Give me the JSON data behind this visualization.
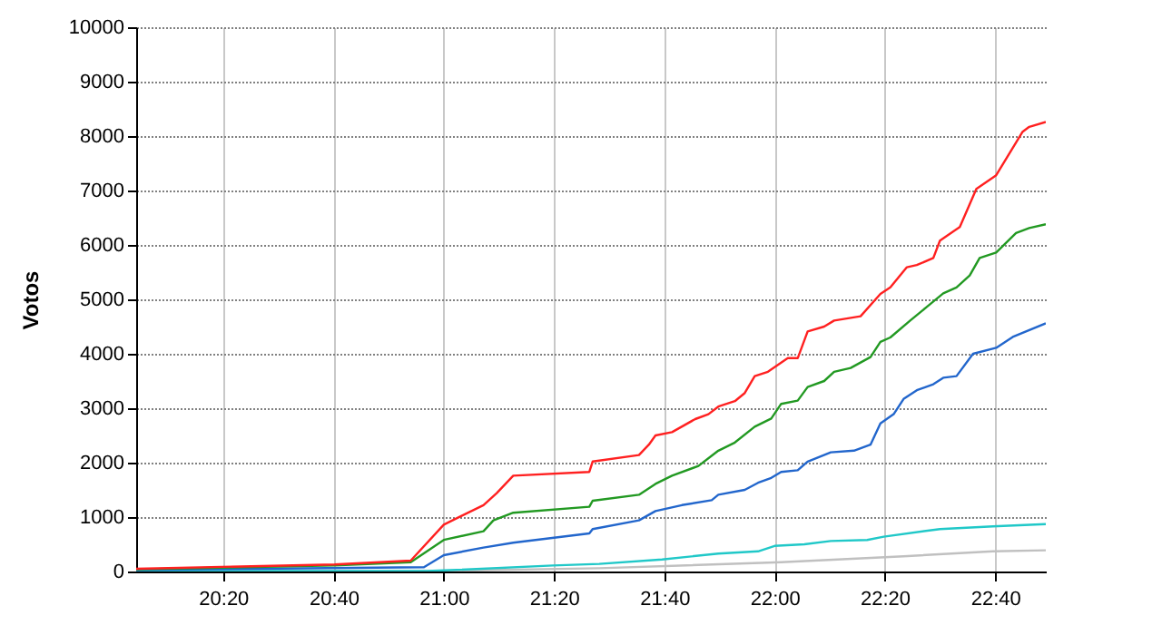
{
  "chart_data": {
    "type": "line",
    "ylabel": "Votos",
    "xlim": [
      20.07,
      22.82
    ],
    "ylim": [
      0,
      10000
    ],
    "xticks": [
      {
        "value": 20.333,
        "label": "20:20"
      },
      {
        "value": 20.667,
        "label": "20:40"
      },
      {
        "value": 21,
        "label": "21:00"
      },
      {
        "value": 21.333,
        "label": "21:20"
      },
      {
        "value": 21.667,
        "label": "21:40"
      },
      {
        "value": 22,
        "label": "22:00"
      },
      {
        "value": 22.333,
        "label": "22:20"
      },
      {
        "value": 22.667,
        "label": "22:40"
      }
    ],
    "yticks": [
      0,
      1000,
      2000,
      3000,
      4000,
      5000,
      6000,
      7000,
      8000,
      9000,
      10000
    ],
    "grid": true,
    "marker": "none",
    "line_style": "solid",
    "series": [
      {
        "color": "#c0c0c0",
        "x": [
          20.07,
          21.0,
          21.47,
          22.02,
          22.39,
          22.66,
          22.82
        ],
        "values": [
          0,
          10,
          60,
          170,
          280,
          370,
          390
        ]
      },
      {
        "color": "#20c8c8",
        "x": [
          20.07,
          20.95,
          21.0,
          21.33,
          21.47,
          21.66,
          21.83,
          21.95,
          22.0,
          22.09,
          22.17,
          22.28,
          22.33,
          22.5,
          22.66,
          22.82
        ],
        "values": [
          10,
          10,
          20,
          110,
          140,
          220,
          330,
          370,
          470,
          500,
          560,
          580,
          640,
          780,
          830,
          870
        ]
      },
      {
        "color": "#2266cc",
        "x": [
          20.07,
          20.94,
          21.0,
          21.12,
          21.21,
          21.44,
          21.45,
          21.59,
          21.64,
          21.72,
          21.81,
          21.83,
          21.91,
          21.95,
          21.99,
          22.02,
          22.07,
          22.1,
          22.17,
          22.24,
          22.29,
          22.32,
          22.36,
          22.39,
          22.43,
          22.48,
          22.51,
          22.55,
          22.6,
          22.67,
          22.72,
          22.82
        ],
        "values": [
          30,
          80,
          300,
          440,
          530,
          700,
          780,
          940,
          1110,
          1220,
          1310,
          1410,
          1500,
          1630,
          1720,
          1830,
          1860,
          2020,
          2190,
          2220,
          2330,
          2720,
          2890,
          3170,
          3330,
          3440,
          3560,
          3590,
          4000,
          4110,
          4310,
          4560
        ]
      },
      {
        "color": "#229922",
        "x": [
          20.07,
          20.67,
          20.9,
          21.0,
          21.12,
          21.15,
          21.21,
          21.44,
          21.45,
          21.59,
          21.64,
          21.69,
          21.77,
          21.83,
          21.88,
          21.94,
          21.99,
          22.02,
          22.07,
          22.1,
          22.15,
          22.18,
          22.23,
          22.29,
          22.32,
          22.35,
          22.41,
          22.46,
          22.51,
          22.55,
          22.59,
          22.62,
          22.67,
          22.73,
          22.77,
          22.82
        ],
        "values": [
          40,
          110,
          170,
          580,
          740,
          940,
          1080,
          1190,
          1300,
          1410,
          1610,
          1760,
          1940,
          2220,
          2370,
          2660,
          2810,
          3080,
          3140,
          3390,
          3500,
          3670,
          3740,
          3940,
          4220,
          4300,
          4610,
          4860,
          5110,
          5220,
          5440,
          5760,
          5860,
          6220,
          6310,
          6380
        ]
      },
      {
        "color": "#ff2020",
        "x": [
          20.07,
          20.67,
          20.9,
          21.0,
          21.12,
          21.16,
          21.21,
          21.44,
          21.45,
          21.59,
          21.62,
          21.64,
          21.69,
          21.76,
          21.8,
          21.83,
          21.88,
          21.91,
          21.94,
          21.98,
          22.04,
          22.07,
          22.1,
          22.15,
          22.18,
          22.26,
          22.32,
          22.35,
          22.4,
          22.43,
          22.48,
          22.5,
          22.56,
          22.61,
          22.67,
          22.75,
          22.77,
          22.82
        ],
        "values": [
          50,
          130,
          200,
          860,
          1220,
          1440,
          1760,
          1830,
          2020,
          2140,
          2330,
          2500,
          2560,
          2800,
          2890,
          3030,
          3130,
          3280,
          3590,
          3670,
          3920,
          3920,
          4410,
          4500,
          4610,
          4690,
          5100,
          5220,
          5590,
          5630,
          5760,
          6080,
          6330,
          7030,
          7280,
          8080,
          8170,
          8260
        ]
      }
    ]
  }
}
